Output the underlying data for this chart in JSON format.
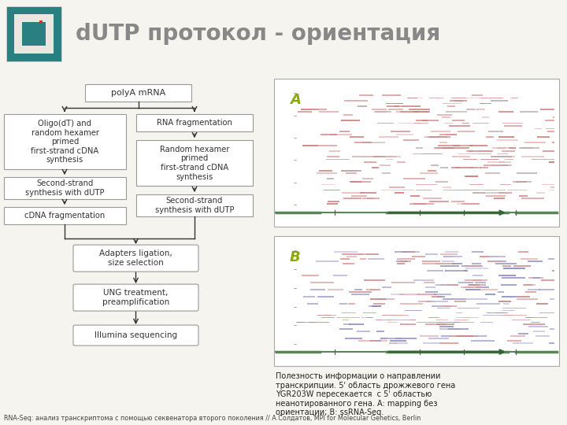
{
  "title": "dUTP протокол - ориентация",
  "title_color": "#888888",
  "header_bg": "#e6e2d5",
  "main_bg": "#f5f4ef",
  "box_bg": "#ffffff",
  "box_edge": "#999999",
  "bottom_text": "RNA-Seq: анализ транскриптома с помощью секвенатора второго поколения // А.Солдатов, MPI for Molecular Genetics, Berlin",
  "right_text": "Полезность информации о направлении\nтранскрипции. 5' область дрожжевого гена\nYGR203W пересекается  с 5' областью\nнеанотированного гена. A: mapping без\nориентации; B: ssRNA-Seq.",
  "label_A": "A",
  "label_B": "B",
  "label_color_AB": "#8aaa00",
  "panel_bg": "#ffffff",
  "panel_edge": "#aaaaaa",
  "track_color_red": "#cc8888",
  "track_color_pink": "#e8bbbb",
  "track_color_blue": "#9999cc",
  "track_color_blue_light": "#bbbbdd",
  "arrow_color": "#336633",
  "genome_line_color": "#558855"
}
